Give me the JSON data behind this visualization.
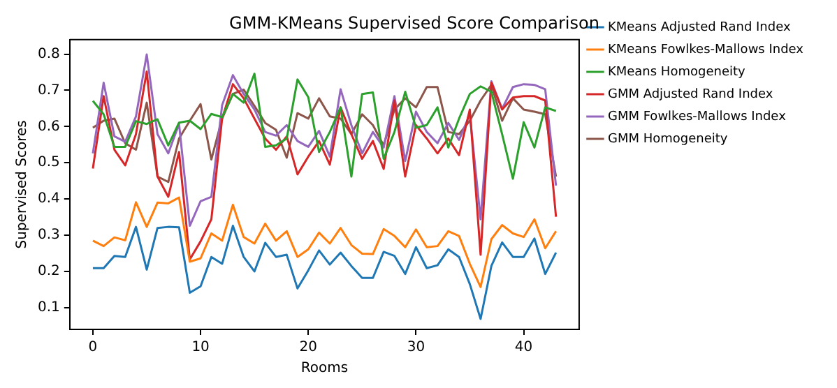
{
  "chart_data": {
    "type": "line",
    "title": "GMM-KMeans Supervised Score Comparison",
    "xlabel": "Rooms",
    "ylabel": "Supervised Scores",
    "x": [
      0,
      1,
      2,
      3,
      4,
      5,
      6,
      7,
      8,
      9,
      10,
      11,
      12,
      13,
      14,
      15,
      16,
      17,
      18,
      19,
      20,
      21,
      22,
      23,
      24,
      25,
      26,
      27,
      28,
      29,
      30,
      31,
      32,
      33,
      34,
      35,
      36,
      37,
      38,
      39,
      40,
      41,
      42,
      43
    ],
    "series": [
      {
        "name": "KMeans Adjusted Rand Index",
        "color": "#1f77b4",
        "values": [
          0.209,
          0.209,
          0.243,
          0.24,
          0.323,
          0.205,
          0.32,
          0.323,
          0.322,
          0.141,
          0.159,
          0.24,
          0.221,
          0.326,
          0.24,
          0.2,
          0.279,
          0.24,
          0.246,
          0.153,
          0.203,
          0.258,
          0.219,
          0.252,
          0.215,
          0.182,
          0.182,
          0.254,
          0.243,
          0.193,
          0.267,
          0.209,
          0.217,
          0.261,
          0.24,
          0.165,
          0.069,
          0.215,
          0.28,
          0.24,
          0.24,
          0.291,
          0.193,
          0.252
        ]
      },
      {
        "name": "KMeans Fowlkes-Mallows Index",
        "color": "#ff7f0e",
        "values": [
          0.285,
          0.27,
          0.294,
          0.286,
          0.391,
          0.323,
          0.39,
          0.388,
          0.404,
          0.227,
          0.236,
          0.305,
          0.285,
          0.384,
          0.295,
          0.277,
          0.332,
          0.285,
          0.311,
          0.24,
          0.261,
          0.307,
          0.277,
          0.32,
          0.273,
          0.249,
          0.248,
          0.317,
          0.298,
          0.267,
          0.316,
          0.267,
          0.27,
          0.311,
          0.298,
          0.221,
          0.157,
          0.289,
          0.328,
          0.305,
          0.295,
          0.344,
          0.264,
          0.311
        ]
      },
      {
        "name": "KMeans Homogeneity",
        "color": "#2ca02c",
        "values": [
          0.671,
          0.634,
          0.544,
          0.544,
          0.615,
          0.607,
          0.62,
          0.548,
          0.611,
          0.616,
          0.593,
          0.635,
          0.626,
          0.69,
          0.666,
          0.746,
          0.544,
          0.548,
          0.567,
          0.73,
          0.681,
          0.53,
          0.585,
          0.653,
          0.462,
          0.69,
          0.694,
          0.511,
          0.585,
          0.696,
          0.597,
          0.604,
          0.653,
          0.542,
          0.622,
          0.69,
          0.711,
          0.696,
          0.579,
          0.456,
          0.612,
          0.542,
          0.653,
          0.643
        ]
      },
      {
        "name": "GMM Adjusted Rand Index",
        "color": "#d62728",
        "values": [
          0.484,
          0.684,
          0.536,
          0.493,
          0.579,
          0.752,
          0.462,
          0.406,
          0.53,
          0.233,
          0.283,
          0.344,
          0.622,
          0.717,
          0.678,
          0.622,
          0.567,
          0.536,
          0.573,
          0.468,
          0.517,
          0.56,
          0.495,
          0.653,
          0.579,
          0.511,
          0.56,
          0.483,
          0.672,
          0.462,
          0.604,
          0.567,
          0.526,
          0.567,
          0.521,
          0.647,
          0.246,
          0.721,
          0.647,
          0.68,
          0.684,
          0.684,
          0.672,
          0.351
        ]
      },
      {
        "name": "GMM Fowlkes-Mallows Index",
        "color": "#9467bd",
        "values": [
          0.526,
          0.721,
          0.573,
          0.558,
          0.628,
          0.799,
          0.579,
          0.526,
          0.607,
          0.326,
          0.394,
          0.406,
          0.659,
          0.742,
          0.69,
          0.647,
          0.585,
          0.575,
          0.604,
          0.56,
          0.544,
          0.588,
          0.517,
          0.703,
          0.604,
          0.526,
          0.585,
          0.542,
          0.684,
          0.505,
          0.641,
          0.585,
          0.554,
          0.61,
          0.563,
          0.634,
          0.344,
          0.725,
          0.649,
          0.709,
          0.717,
          0.715,
          0.703,
          0.437
        ]
      },
      {
        "name": "GMM Homogeneity",
        "color": "#8c564b",
        "values": [
          0.597,
          0.616,
          0.622,
          0.554,
          0.536,
          0.666,
          0.462,
          0.447,
          0.567,
          0.616,
          0.662,
          0.509,
          0.622,
          0.69,
          0.702,
          0.657,
          0.61,
          0.591,
          0.514,
          0.637,
          0.622,
          0.678,
          0.628,
          0.622,
          0.579,
          0.634,
          0.604,
          0.548,
          0.647,
          0.678,
          0.653,
          0.709,
          0.709,
          0.585,
          0.579,
          0.616,
          0.672,
          0.715,
          0.616,
          0.678,
          0.647,
          0.641,
          0.634,
          0.462
        ]
      }
    ],
    "xlim": [
      -2.15,
      45.15
    ],
    "ylim": [
      0.04,
      0.84
    ],
    "xticks": [
      0,
      10,
      20,
      30,
      40
    ],
    "yticks": [
      0.1,
      0.2,
      0.3,
      0.4,
      0.5,
      0.6,
      0.7,
      0.8
    ],
    "legend": "right",
    "grid": false,
    "marker": "none",
    "line_style": "solid"
  }
}
